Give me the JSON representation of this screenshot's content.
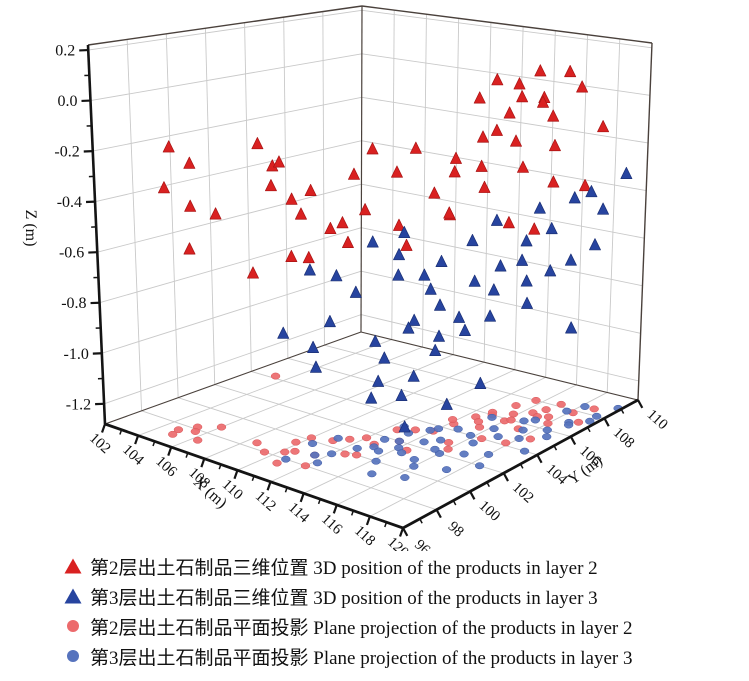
{
  "figure": {
    "background": "#ffffff"
  },
  "chart_data": {
    "type": "scatter3d",
    "title": "",
    "grid": true,
    "axes": {
      "x": {
        "label": "X (m)",
        "min": 102,
        "max": 120,
        "major_tick_values": [
          102,
          104,
          106,
          108,
          110,
          112,
          114,
          116,
          118,
          120
        ],
        "major_tick_labels": [
          "102",
          "104",
          "106",
          "108",
          "110",
          "112",
          "114",
          "116",
          "118",
          "120"
        ],
        "minor_tick_values": [
          103,
          105,
          107,
          109,
          111,
          113,
          115,
          117,
          119
        ]
      },
      "y": {
        "label": "Y (m)",
        "min": 96,
        "max": 110,
        "major_tick_values": [
          96,
          98,
          100,
          102,
          104,
          106,
          108,
          110
        ],
        "major_tick_labels": [
          "96",
          "98",
          "100",
          "102",
          "104",
          "106",
          "108",
          "110"
        ],
        "minor_tick_values": [
          97,
          99,
          101,
          103,
          105,
          107,
          109
        ]
      },
      "z": {
        "label": "Z (m)",
        "min": -1.28,
        "max": 0.22,
        "major_tick_values": [
          0.2,
          0.0,
          -0.2,
          -0.4,
          -0.6,
          -0.8,
          -1.0,
          -1.2
        ],
        "major_tick_labels": [
          "0.2",
          "0.0",
          "-0.2",
          "-0.4",
          "-0.6",
          "-0.8",
          "-1.0",
          "-1.2"
        ],
        "minor_tick_values": [
          0.1,
          -0.1,
          -0.3,
          -0.5,
          -0.7,
          -0.9,
          -1.1
        ]
      }
    },
    "series": [
      {
        "id": "layer2-3d",
        "label": "第2层出土石制品三维位置 3D position of the products in layer 2",
        "marker": "triangle",
        "color": "#d92121",
        "edge_color": "#a81414",
        "points": [
          [
            104.8,
            97.5,
            -0.15
          ],
          [
            105.2,
            98.2,
            -0.22
          ],
          [
            105.0,
            97.0,
            -0.3
          ],
          [
            106.0,
            98.8,
            -0.42
          ],
          [
            105.5,
            97.8,
            -0.55
          ],
          [
            106.3,
            97.2,
            -0.35
          ],
          [
            103.3,
            104.2,
            -0.38
          ],
          [
            109.5,
            98.0,
            -0.05
          ],
          [
            110.2,
            98.5,
            -0.12
          ],
          [
            110.8,
            97.5,
            -0.18
          ],
          [
            111.5,
            99.0,
            -0.22
          ],
          [
            109.8,
            99.5,
            -0.3
          ],
          [
            112.0,
            98.0,
            -0.28
          ],
          [
            112.5,
            99.8,
            -0.35
          ],
          [
            111.0,
            100.5,
            -0.42
          ],
          [
            110.5,
            98.8,
            -0.5
          ],
          [
            113.0,
            100.0,
            -0.15
          ],
          [
            112.8,
            101.2,
            -0.08
          ],
          [
            115.0,
            106.0,
            0.12
          ],
          [
            115.8,
            106.5,
            0.1
          ],
          [
            116.5,
            107.0,
            0.15
          ],
          [
            114.5,
            105.5,
            0.05
          ],
          [
            115.2,
            107.2,
            0.02
          ],
          [
            116.0,
            105.8,
            0.0
          ],
          [
            117.0,
            106.8,
            0.05
          ],
          [
            116.8,
            107.5,
            -0.05
          ],
          [
            115.5,
            104.8,
            -0.08
          ],
          [
            114.8,
            106.2,
            -0.1
          ],
          [
            116.2,
            106.0,
            -0.12
          ],
          [
            117.5,
            107.0,
            -0.15
          ],
          [
            114.2,
            104.5,
            -0.18
          ],
          [
            115.0,
            105.2,
            -0.22
          ],
          [
            116.5,
            104.0,
            -0.25
          ],
          [
            117.2,
            105.5,
            -0.2
          ],
          [
            118.0,
            106.5,
            -0.28
          ],
          [
            114.0,
            103.5,
            -0.3
          ],
          [
            115.5,
            103.0,
            -0.35
          ],
          [
            116.0,
            102.5,
            -0.32
          ],
          [
            117.8,
            104.2,
            -0.38
          ],
          [
            113.5,
            102.0,
            -0.4
          ],
          [
            114.5,
            101.5,
            -0.45
          ],
          [
            118.5,
            105.0,
            -0.42
          ],
          [
            113.8,
            104.8,
            -0.25
          ],
          [
            118.2,
            107.8,
            0.08
          ],
          [
            117.0,
            108.2,
            0.12
          ],
          [
            115.6,
            108.0,
            -0.02
          ],
          [
            113.2,
            103.2,
            -0.12
          ],
          [
            112.5,
            102.8,
            -0.22
          ],
          [
            118.8,
            108.5,
            -0.1
          ],
          [
            119.2,
            107.2,
            -0.3
          ],
          [
            112.0,
            101.5,
            -0.35
          ],
          [
            111.5,
            101.0,
            -0.48
          ],
          [
            110.0,
            100.2,
            -0.55
          ],
          [
            108.5,
            98.5,
            -0.6
          ]
        ]
      },
      {
        "id": "layer3-3d",
        "label": "第3层出土石制品三维位置 3D position of the products in layer 3",
        "marker": "triangle",
        "color": "#27449f",
        "edge_color": "#1b3076",
        "points": [
          [
            113.0,
            101.0,
            -0.45
          ],
          [
            113.5,
            102.0,
            -0.52
          ],
          [
            114.0,
            101.5,
            -0.58
          ],
          [
            112.5,
            100.5,
            -0.65
          ],
          [
            114.5,
            102.5,
            -0.6
          ],
          [
            115.0,
            103.0,
            -0.55
          ],
          [
            113.8,
            103.5,
            -0.7
          ],
          [
            112.0,
            99.5,
            -0.75
          ],
          [
            114.2,
            100.0,
            -0.8
          ],
          [
            115.5,
            101.0,
            -0.72
          ],
          [
            116.0,
            102.0,
            -0.68
          ],
          [
            116.5,
            103.5,
            -0.62
          ],
          [
            117.0,
            104.5,
            -0.58
          ],
          [
            115.8,
            104.0,
            -0.48
          ],
          [
            116.2,
            105.0,
            -0.42
          ],
          [
            117.5,
            105.5,
            -0.5
          ],
          [
            118.0,
            104.8,
            -0.55
          ],
          [
            118.5,
            106.0,
            -0.45
          ],
          [
            117.2,
            106.5,
            -0.4
          ],
          [
            118.8,
            107.0,
            -0.35
          ],
          [
            119.0,
            105.5,
            -0.6
          ],
          [
            119.5,
            108.0,
            -0.42
          ],
          [
            118.2,
            108.5,
            -0.38
          ],
          [
            117.8,
            107.8,
            -0.65
          ],
          [
            116.8,
            106.2,
            -0.7
          ],
          [
            115.2,
            105.8,
            -0.75
          ],
          [
            114.8,
            104.2,
            -0.82
          ],
          [
            113.2,
            102.8,
            -0.85
          ],
          [
            114.0,
            103.8,
            -0.9
          ],
          [
            115.5,
            102.2,
            -0.88
          ],
          [
            112.8,
            101.8,
            -0.95
          ],
          [
            113.5,
            100.8,
            -1.0
          ],
          [
            114.5,
            101.2,
            -1.05
          ],
          [
            116.0,
            100.5,
            -0.92
          ],
          [
            117.0,
            102.5,
            -0.78
          ],
          [
            118.0,
            103.0,
            -0.72
          ],
          [
            119.2,
            104.0,
            -0.68
          ],
          [
            111.5,
            99.0,
            -0.85
          ],
          [
            112.2,
            98.5,
            -0.9
          ],
          [
            110.8,
            98.0,
            -0.78
          ],
          [
            119.8,
            109.0,
            -0.3
          ],
          [
            119.6,
            107.5,
            -0.55
          ],
          [
            118.5,
            102.0,
            -0.95
          ],
          [
            117.5,
            101.0,
            -1.02
          ],
          [
            116.5,
            99.5,
            -1.08
          ],
          [
            115.0,
            99.0,
            -0.98
          ],
          [
            119.0,
            106.8,
            -0.88
          ],
          [
            111.0,
            100.8,
            -0.62
          ],
          [
            110.5,
            99.8,
            -0.58
          ],
          [
            112.5,
            103.2,
            -0.48
          ]
        ]
      },
      {
        "id": "layer2-proj",
        "label": "第2层出土石制品平面投影 Plane projection of the products in layer 2",
        "marker": "circle",
        "color": "#ec6a6c",
        "edge_color": "#d85457",
        "projection_of": "layer2-3d"
      },
      {
        "id": "layer3-proj",
        "label": "第3层出土石制品平面投影 Plane projection of the products in layer 3",
        "marker": "circle",
        "color": "#5673bd",
        "edge_color": "#3f5aa6",
        "projection_of": "layer3-3d"
      }
    ]
  },
  "legend": {
    "items": [
      {
        "label": "第2层出土石制品三维位置 3D position of the products in layer 2",
        "marker": "triangle",
        "color": "#d92121"
      },
      {
        "label": "第3层出土石制品三维位置 3D position of the products in layer 3",
        "marker": "triangle",
        "color": "#27449f"
      },
      {
        "label": "第2层出土石制品平面投影 Plane projection of the products in layer 2",
        "marker": "circle",
        "color": "#ec6a6c"
      },
      {
        "label": "第3层出土石制品平面投影 Plane projection of the products in layer 3",
        "marker": "circle",
        "color": "#5673bd"
      }
    ]
  }
}
